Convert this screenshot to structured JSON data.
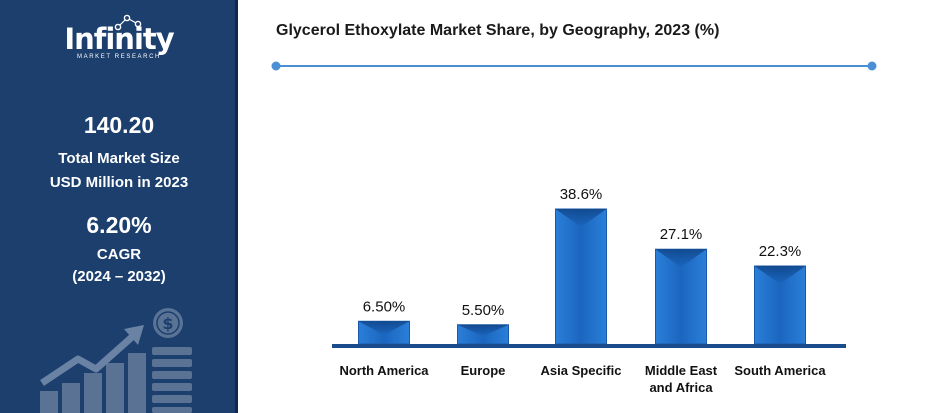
{
  "sidebar": {
    "logo_text": "Infinity",
    "logo_subtext": "MARKET RESEARCH",
    "market_size_value": "140.20",
    "market_size_label_1": "Total Market Size",
    "market_size_label_2": "USD Million in 2023",
    "cagr_value": "6.20%",
    "cagr_label": "CAGR",
    "cagr_period": "(2024 – 2032)",
    "icon_names": [
      "dollar-coin-icon",
      "growth-arrow-icon",
      "bar-growth-icon"
    ],
    "background_color": "#1c3f6e"
  },
  "chart_data": {
    "type": "bar",
    "title": "Glycerol Ethoxylate Market Share, by Geography, 2023 (%)",
    "categories": [
      "North America",
      "Europe",
      "Asia Specific",
      "Middle East and Africa",
      "South America"
    ],
    "category_lines": [
      [
        "North America"
      ],
      [
        "Europe"
      ],
      [
        "Asia Specific"
      ],
      [
        "Middle East",
        "and Africa"
      ],
      [
        "South America"
      ]
    ],
    "values": [
      6.5,
      5.5,
      38.6,
      27.1,
      22.3
    ],
    "value_labels": [
      "6.50%",
      "5.50%",
      "38.6%",
      "27.1%",
      "22.3%"
    ],
    "ylim": [
      0,
      38.6
    ],
    "xlabel": "",
    "ylabel": "",
    "grid": false,
    "legend": "none",
    "bar_color": "#1f6fc4",
    "accent_color": "#4a8fd6"
  }
}
